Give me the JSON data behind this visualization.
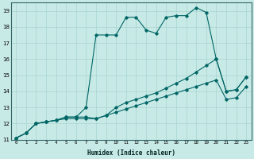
{
  "xlabel": "Humidex (Indice chaleur)",
  "ylabel": "",
  "bg_color": "#c8eae6",
  "grid_color": "#a8d4d0",
  "line_color": "#006666",
  "xlim": [
    -0.5,
    23.5
  ],
  "ylim": [
    11,
    19.5
  ],
  "xticks": [
    0,
    1,
    2,
    3,
    4,
    5,
    6,
    7,
    8,
    9,
    10,
    11,
    12,
    13,
    14,
    15,
    16,
    17,
    18,
    19,
    20,
    21,
    22,
    23
  ],
  "yticks": [
    11,
    12,
    13,
    14,
    15,
    16,
    17,
    18,
    19
  ],
  "series": [
    [
      11.1,
      11.4,
      12.0,
      12.1,
      12.2,
      12.4,
      12.4,
      13.0,
      17.5,
      17.5,
      17.5,
      18.6,
      18.6,
      17.8,
      17.6,
      18.6,
      18.7,
      18.7,
      19.2,
      18.9,
      16.0,
      14.0,
      14.1,
      14.9
    ],
    [
      11.1,
      11.4,
      12.0,
      12.1,
      12.2,
      12.4,
      12.4,
      12.4,
      12.3,
      12.5,
      13.0,
      13.3,
      13.5,
      13.7,
      13.9,
      14.2,
      14.5,
      14.8,
      15.2,
      15.6,
      16.0,
      14.0,
      14.1,
      14.9
    ],
    [
      11.1,
      11.4,
      12.0,
      12.1,
      12.2,
      12.3,
      12.3,
      12.3,
      12.3,
      12.5,
      12.7,
      12.9,
      13.1,
      13.3,
      13.5,
      13.7,
      13.9,
      14.1,
      14.3,
      14.5,
      14.7,
      13.5,
      13.6,
      14.3
    ]
  ]
}
